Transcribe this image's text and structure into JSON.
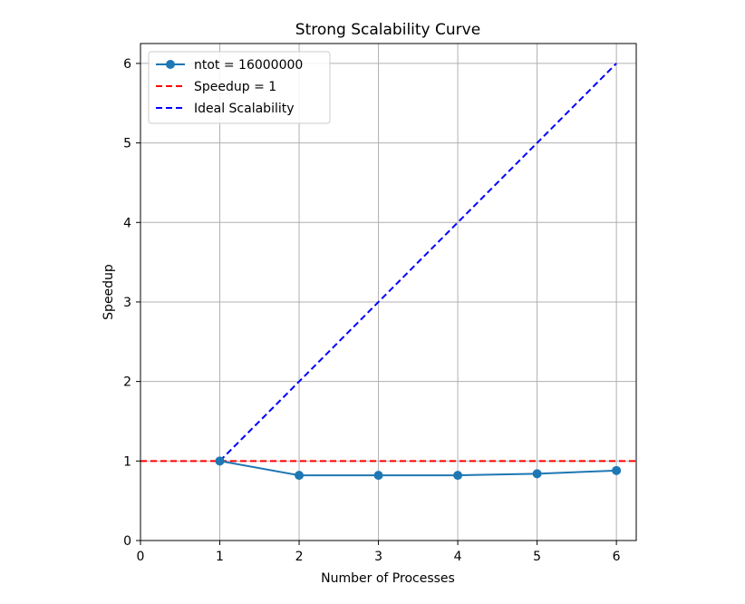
{
  "chart_data": {
    "type": "line",
    "title": "Strong Scalability Curve",
    "xlabel": "Number of Processes",
    "ylabel": "Speedup",
    "xlim": [
      0,
      6.25
    ],
    "ylim": [
      0,
      6.25
    ],
    "xticks": [
      0,
      1,
      2,
      3,
      4,
      5,
      6
    ],
    "yticks": [
      0,
      1,
      2,
      3,
      4,
      5,
      6
    ],
    "grid": true,
    "legend_position": "top-left",
    "series": [
      {
        "name": "ntot = 16000000",
        "style": "solid-marker",
        "color": "#1f77b4",
        "x": [
          1,
          2,
          3,
          4,
          5,
          6
        ],
        "y": [
          1.0,
          0.82,
          0.82,
          0.82,
          0.84,
          0.88
        ]
      },
      {
        "name": "Speedup = 1",
        "style": "dashed-horizontal",
        "color": "#ff0000",
        "y": 1
      },
      {
        "name": "Ideal Scalability",
        "style": "dashed",
        "color": "#0000ff",
        "x": [
          1,
          6
        ],
        "y": [
          1,
          6
        ]
      }
    ]
  }
}
